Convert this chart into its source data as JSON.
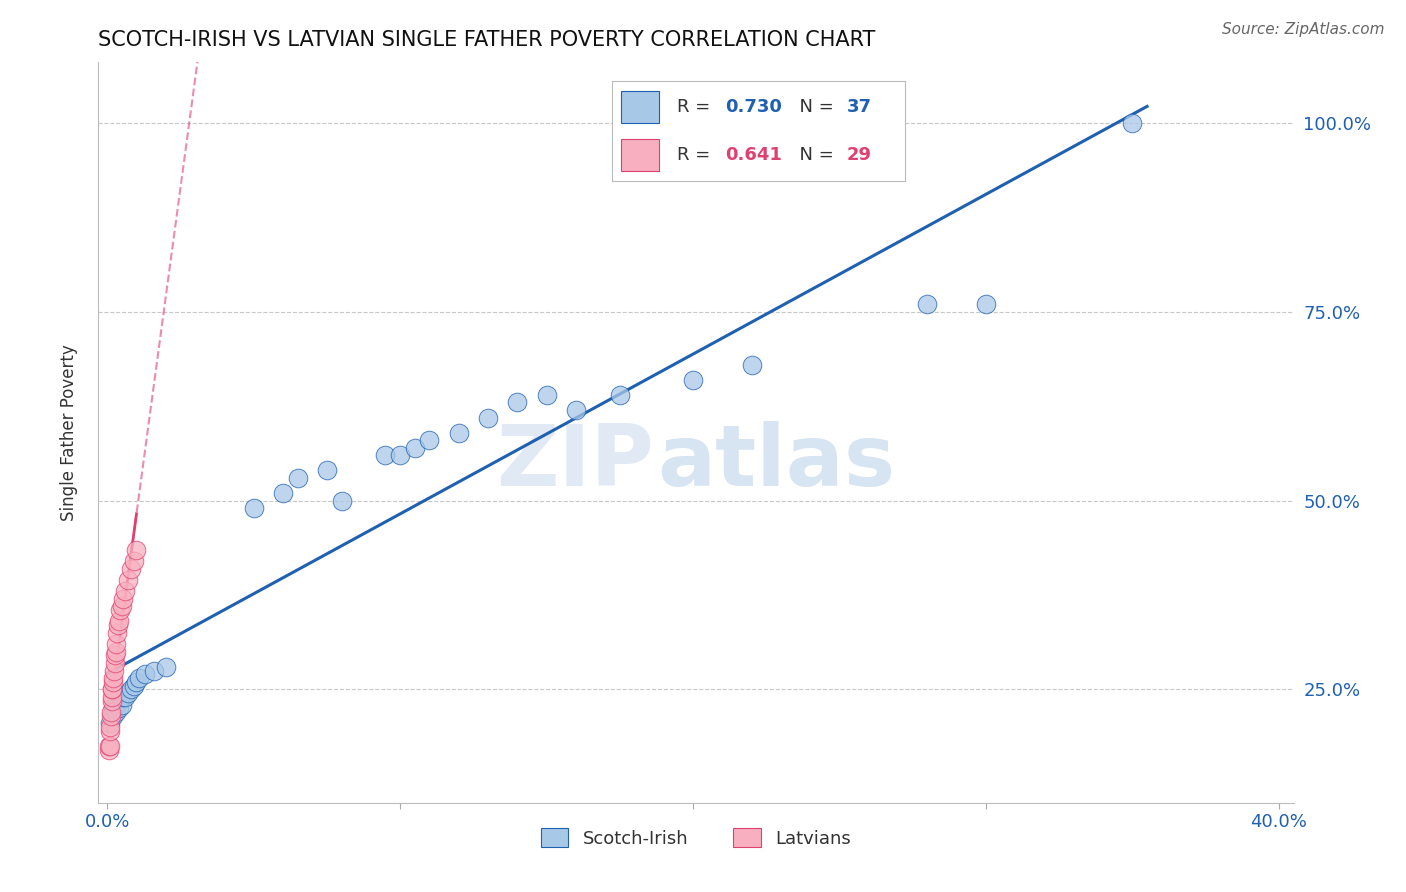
{
  "title": "SCOTCH-IRISH VS LATVIAN SINGLE FATHER POVERTY CORRELATION CHART",
  "source": "Source: ZipAtlas.com",
  "ylabel": "Single Father Poverty",
  "R_blue": 0.73,
  "N_blue": 37,
  "R_pink": 0.641,
  "N_pink": 29,
  "blue_color": "#a8c8e8",
  "pink_color": "#f8b0c0",
  "blue_line_color": "#2060b0",
  "pink_line_color": "#e04070",
  "grid_color": "#c8c8c8",
  "watermark_zip": "ZIP",
  "watermark_atlas": "atlas",
  "scotch_irish_x": [
    0.001,
    0.002,
    0.002,
    0.003,
    0.003,
    0.004,
    0.005,
    0.005,
    0.006,
    0.007,
    0.008,
    0.009,
    0.01,
    0.011,
    0.013,
    0.016,
    0.02,
    0.05,
    0.06,
    0.065,
    0.075,
    0.08,
    0.095,
    0.1,
    0.105,
    0.11,
    0.12,
    0.13,
    0.14,
    0.15,
    0.16,
    0.175,
    0.2,
    0.22,
    0.28,
    0.3,
    0.35
  ],
  "scotch_irish_y": [
    0.205,
    0.215,
    0.225,
    0.22,
    0.23,
    0.225,
    0.23,
    0.24,
    0.24,
    0.245,
    0.25,
    0.255,
    0.26,
    0.265,
    0.27,
    0.275,
    0.28,
    0.49,
    0.51,
    0.53,
    0.54,
    0.5,
    0.56,
    0.56,
    0.57,
    0.58,
    0.59,
    0.61,
    0.63,
    0.64,
    0.62,
    0.64,
    0.66,
    0.68,
    0.76,
    0.76,
    1.0
  ],
  "latvian_x": [
    0.0005,
    0.0007,
    0.0008,
    0.001,
    0.001,
    0.0012,
    0.0013,
    0.0015,
    0.0015,
    0.0017,
    0.0018,
    0.002,
    0.002,
    0.0022,
    0.0025,
    0.0027,
    0.003,
    0.003,
    0.0035,
    0.0038,
    0.004,
    0.0045,
    0.005,
    0.0055,
    0.006,
    0.007,
    0.008,
    0.009,
    0.01
  ],
  "latvian_y": [
    0.17,
    0.175,
    0.175,
    0.195,
    0.2,
    0.215,
    0.22,
    0.235,
    0.24,
    0.25,
    0.25,
    0.26,
    0.265,
    0.275,
    0.285,
    0.295,
    0.3,
    0.31,
    0.325,
    0.335,
    0.34,
    0.355,
    0.36,
    0.37,
    0.38,
    0.395,
    0.41,
    0.42,
    0.435
  ],
  "xlim_min": -0.003,
  "xlim_max": 0.405,
  "ylim_min": 0.1,
  "ylim_max": 1.08
}
